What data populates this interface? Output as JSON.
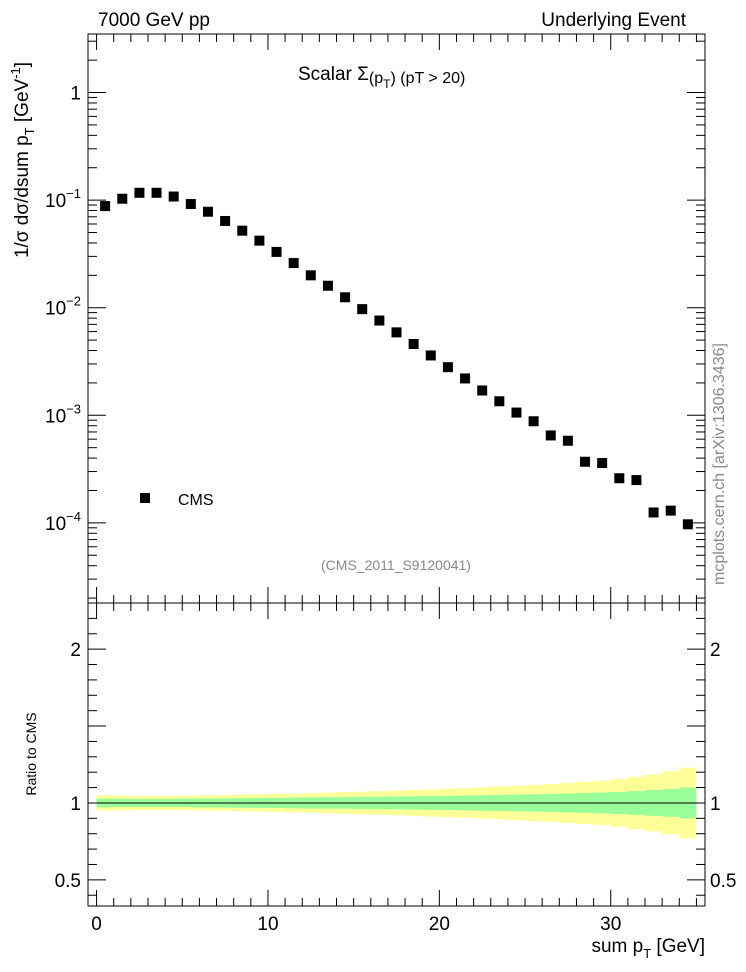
{
  "header": {
    "left": "7000 GeV pp",
    "right": "Underlying Event"
  },
  "side_label": "mcplots.cern.ch [arXiv:1306.3436]",
  "chart_data": [
    {
      "type": "scatter",
      "title": "Scalar Σ(pT) (pT > 20)",
      "title_parts": {
        "prefix": "Scalar ",
        "sigma": "Σ",
        "open": "(p",
        "sub": "T",
        "close": ") (pT > 20)"
      },
      "ylabel": "1/σ dσ/dsum pT [GeV⁻¹]",
      "ylabel_parts": {
        "main": "1/σ dσ/dsum p",
        "sub": "T",
        "unit": " [GeV",
        "sup": "-1",
        "end": "]"
      },
      "yscale": "log",
      "ylim": [
        1.8e-05,
        3.5
      ],
      "xlim": [
        -0.5,
        35.5
      ],
      "y_ticks": [
        {
          "value": 1,
          "base": "1",
          "exp": ""
        },
        {
          "value": 0.1,
          "base": "10",
          "exp": "−1"
        },
        {
          "value": 0.01,
          "base": "10",
          "exp": "−2"
        },
        {
          "value": 0.001,
          "base": "10",
          "exp": "−3"
        },
        {
          "value": 0.0001,
          "base": "10",
          "exp": "−4"
        }
      ],
      "legend": {
        "label": "CMS",
        "position": "lower-left"
      },
      "annotation": "(CMS_2011_S9120041)",
      "series": [
        {
          "name": "CMS",
          "x": [
            0.5,
            1.5,
            2.5,
            3.5,
            4.5,
            5.5,
            6.5,
            7.5,
            8.5,
            9.5,
            10.5,
            11.5,
            12.5,
            13.5,
            14.5,
            15.5,
            16.5,
            17.5,
            18.5,
            19.5,
            20.5,
            21.5,
            22.5,
            23.5,
            24.5,
            25.5,
            26.5,
            27.5,
            28.5,
            29.5,
            30.5,
            31.5,
            32.5,
            33.5,
            34.5
          ],
          "values": [
            0.088,
            0.103,
            0.117,
            0.117,
            0.108,
            0.092,
            0.078,
            0.064,
            0.052,
            0.042,
            0.033,
            0.026,
            0.02,
            0.016,
            0.0125,
            0.0097,
            0.0076,
            0.0059,
            0.0046,
            0.0036,
            0.0028,
            0.0022,
            0.0017,
            0.00135,
            0.00106,
            0.00088,
            0.00065,
            0.00058,
            0.00037,
            0.00036,
            0.00026,
            0.00025,
            0.000125,
            0.00013,
            9.7e-05
          ]
        }
      ]
    },
    {
      "type": "area",
      "ylabel": "Ratio to CMS",
      "xlabel": "sum pT [GeV]",
      "xlabel_parts": {
        "main": "sum p",
        "sub": "T",
        "unit": " [GeV]"
      },
      "xlim": [
        -0.5,
        35.5
      ],
      "ylim": [
        0.33,
        2.3
      ],
      "x_ticks": [
        0,
        10,
        20,
        30
      ],
      "y_ticks": [
        {
          "value": 0.5,
          "label": "0.5"
        },
        {
          "value": 1,
          "label": "1"
        },
        {
          "value": 2,
          "label": "2"
        }
      ],
      "reference_line": 1,
      "colors": {
        "outer_band": "#ffff99",
        "inner_band": "#99ff99",
        "line": "#000000"
      },
      "bands": {
        "x_edges": [
          0,
          1,
          2,
          3,
          4,
          5,
          6,
          7,
          8,
          9,
          10,
          11,
          12,
          13,
          14,
          15,
          16,
          17,
          18,
          19,
          20,
          21,
          22,
          23,
          24,
          25,
          26,
          27,
          28,
          29,
          30,
          31,
          32,
          33,
          34,
          35
        ],
        "inner_half_width": [
          0.028,
          0.027,
          0.027,
          0.027,
          0.027,
          0.028,
          0.029,
          0.03,
          0.031,
          0.032,
          0.033,
          0.035,
          0.036,
          0.037,
          0.038,
          0.04,
          0.041,
          0.042,
          0.043,
          0.045,
          0.046,
          0.048,
          0.05,
          0.052,
          0.054,
          0.056,
          0.058,
          0.061,
          0.064,
          0.068,
          0.072,
          0.077,
          0.084,
          0.09,
          0.1
        ],
        "outer_half_width": [
          0.05,
          0.048,
          0.047,
          0.047,
          0.047,
          0.048,
          0.05,
          0.052,
          0.054,
          0.056,
          0.058,
          0.061,
          0.064,
          0.067,
          0.07,
          0.073,
          0.077,
          0.08,
          0.084,
          0.088,
          0.092,
          0.096,
          0.101,
          0.106,
          0.111,
          0.117,
          0.123,
          0.13,
          0.137,
          0.145,
          0.155,
          0.17,
          0.185,
          0.205,
          0.23
        ]
      }
    }
  ]
}
